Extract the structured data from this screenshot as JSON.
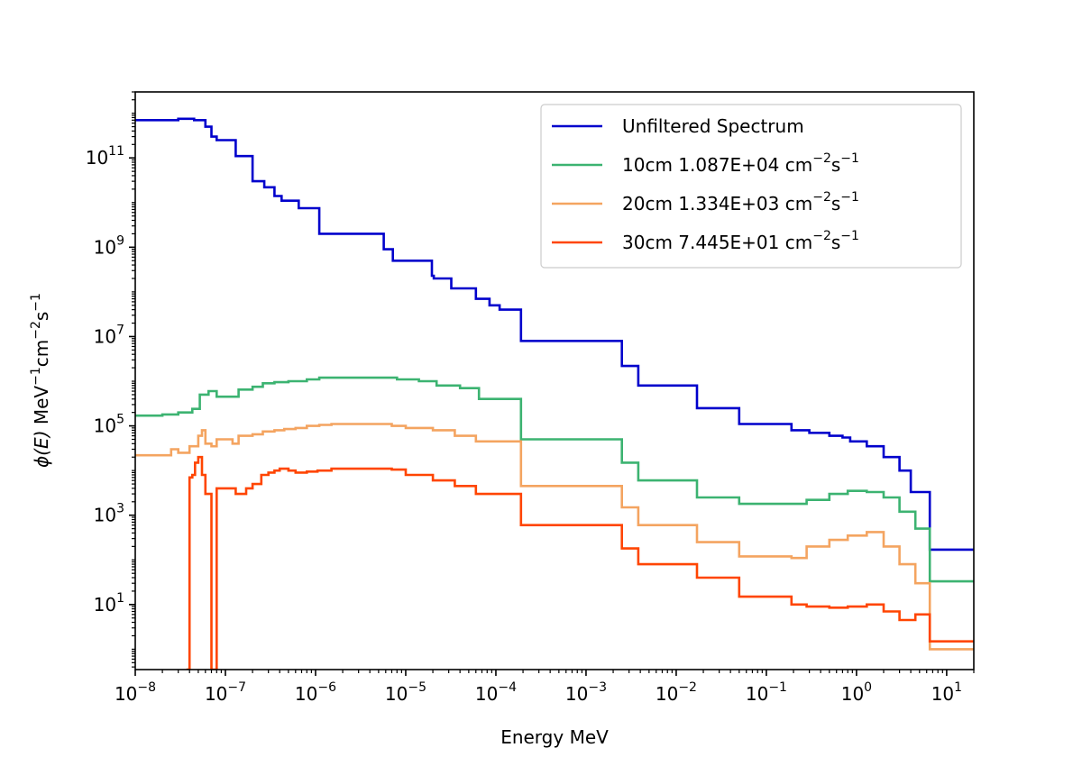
{
  "chart_data": {
    "type": "line",
    "drawstyle": "steps",
    "xscale": "log",
    "yscale": "log",
    "xlabel": "Energy  MeV",
    "ylabel": "ϕ(E)  MeV⁻¹cm⁻²s⁻¹",
    "ylabel_parts": {
      "phi": "ϕ(E)",
      "unit": "MeV",
      "exp1": "−1",
      "cm": "cm",
      "exp2": "−2",
      "s": "s",
      "exp3": "−1"
    },
    "xlim": [
      1e-08,
      20
    ],
    "ylim": [
      0.35,
      3000000000000.0
    ],
    "grid": false,
    "legend_position": "top-right",
    "xticks": [
      {
        "base": "10",
        "exp": "−8",
        "value": 1e-08
      },
      {
        "base": "10",
        "exp": "−7",
        "value": 1e-07
      },
      {
        "base": "10",
        "exp": "−6",
        "value": 1e-06
      },
      {
        "base": "10",
        "exp": "−5",
        "value": 1e-05
      },
      {
        "base": "10",
        "exp": "−4",
        "value": 0.0001
      },
      {
        "base": "10",
        "exp": "−3",
        "value": 0.001
      },
      {
        "base": "10",
        "exp": "−2",
        "value": 0.01
      },
      {
        "base": "10",
        "exp": "−1",
        "value": 0.1
      },
      {
        "base": "10",
        "exp": "0",
        "value": 1
      },
      {
        "base": "10",
        "exp": "1",
        "value": 10
      }
    ],
    "yticks": [
      {
        "base": "10",
        "exp": "1",
        "value": 10
      },
      {
        "base": "10",
        "exp": "3",
        "value": 1000.0
      },
      {
        "base": "10",
        "exp": "5",
        "value": 100000.0
      },
      {
        "base": "10",
        "exp": "7",
        "value": 10000000.0
      },
      {
        "base": "10",
        "exp": "9",
        "value": 1000000000.0
      },
      {
        "base": "10",
        "exp": "11",
        "value": 100000000000.0
      }
    ],
    "series": [
      {
        "name": "Unfiltered Spectrum",
        "legend_parts": {
          "text": "Unfiltered Spectrum",
          "unit1": "",
          "exp1": "",
          "unit2": "",
          "exp2": ""
        },
        "color": "#0000cc",
        "x": [
          1e-08,
          3e-08,
          4.5e-08,
          6e-08,
          7e-08,
          8e-08,
          1.3e-07,
          2e-07,
          2.7e-07,
          3.5e-07,
          4.2e-07,
          6.5e-07,
          1.1e-06,
          5.7e-06,
          7.2e-06,
          1.95e-05,
          2.05e-05,
          3.2e-05,
          6e-05,
          8.5e-05,
          0.00011,
          0.00019,
          0.0025,
          0.0038,
          0.017,
          0.05,
          0.19,
          0.3,
          0.5,
          0.7,
          0.85,
          1.3,
          2,
          3,
          4,
          6.5
        ],
        "y": [
          700000000000.0,
          750000000000.0,
          700000000000.0,
          500000000000.0,
          300000000000.0,
          250000000000.0,
          110000000000.0,
          30000000000.0,
          22000000000.0,
          14000000000.0,
          11000000000.0,
          7500000000.0,
          2000000000.0,
          900000000.0,
          500000000.0,
          230000000.0,
          200000000.0,
          120000000.0,
          70000000.0,
          50000000.0,
          40000000.0,
          8000000.0,
          2200000.0,
          800000.0,
          250000.0,
          110000.0,
          80000.0,
          70000.0,
          60000.0,
          55000.0,
          45000.0,
          35000.0,
          20000.0,
          10000.0,
          3300.0,
          170
        ],
        "x_end": 20
      },
      {
        "name": "10cm 1.087E+04 cm⁻²s⁻¹",
        "legend_parts": {
          "text": "10cm 1.087E+04 ",
          "unit1": "cm",
          "exp1": "−2",
          "unit2": "s",
          "exp2": "−1"
        },
        "color": "#3cb371",
        "x": [
          1e-08,
          2e-08,
          3e-08,
          4.3e-08,
          5.2e-08,
          6.5e-08,
          8e-08,
          1.4e-07,
          2e-07,
          2.6e-07,
          3.5e-07,
          5e-07,
          8e-07,
          1.1e-06,
          8e-06,
          1.4e-05,
          2.2e-05,
          4e-05,
          6.5e-05,
          0.00019,
          0.0025,
          0.0038,
          0.017,
          0.05,
          0.19,
          0.28,
          0.5,
          0.8,
          1.3,
          2,
          3,
          4.5,
          6.5
        ],
        "y": [
          170000.0,
          180000.0,
          200000.0,
          240000.0,
          500000.0,
          600000.0,
          450000.0,
          650000.0,
          750000.0,
          900000.0,
          950000.0,
          1000000.0,
          1100000.0,
          1200000.0,
          1100000.0,
          1000000.0,
          800000.0,
          700000.0,
          400000.0,
          50000.0,
          15000.0,
          6000.0,
          2500.0,
          1800.0,
          1800.0,
          2200.0,
          3000.0,
          3500.0,
          3300.0,
          2500.0,
          1200.0,
          500,
          33
        ],
        "x_end": 20
      },
      {
        "name": "20cm 1.334E+03 cm⁻²s⁻¹",
        "legend_parts": {
          "text": "20cm 1.334E+03 ",
          "unit1": "cm",
          "exp1": "−2",
          "unit2": "s",
          "exp2": "−1"
        },
        "color": "#f4a460",
        "x": [
          1e-08,
          2.5e-08,
          3e-08,
          4e-08,
          5e-08,
          5.5e-08,
          6e-08,
          7e-08,
          8e-08,
          1.2e-07,
          1.4e-07,
          2e-07,
          2.6e-07,
          3.5e-07,
          4.5e-07,
          6e-07,
          8e-07,
          1.1e-06,
          1.5e-06,
          7e-06,
          1e-05,
          2e-05,
          3.5e-05,
          6e-05,
          0.00019,
          0.0025,
          0.0038,
          0.017,
          0.05,
          0.19,
          0.28,
          0.5,
          0.8,
          1.3,
          2,
          3,
          4.5,
          6.5
        ],
        "y": [
          22000.0,
          30000.0,
          25000.0,
          35000.0,
          60000.0,
          80000.0,
          40000.0,
          35000.0,
          50000.0,
          40000.0,
          60000.0,
          65000.0,
          75000.0,
          80000.0,
          85000.0,
          90000.0,
          100000.0,
          105000.0,
          110000.0,
          100000.0,
          90000.0,
          80000.0,
          60000.0,
          45000.0,
          4500.0,
          1500.0,
          600,
          250,
          120,
          110,
          200,
          280,
          350,
          420,
          200,
          80,
          30,
          1
        ],
        "x_end": 20
      },
      {
        "name": "30cm 7.445E+01 cm⁻²s⁻¹",
        "legend_parts": {
          "text": "30cm 7.445E+01 ",
          "unit1": "cm",
          "exp1": "−2",
          "unit2": "s",
          "exp2": "−1"
        },
        "color": "#ff4500",
        "x": [
          3.7e-08,
          4e-08,
          4.3e-08,
          4.6e-08,
          5e-08,
          5.5e-08,
          6e-08,
          7e-08,
          8e-08,
          1e-07,
          1.3e-07,
          1.7e-07,
          2e-07,
          2.5e-07,
          3e-07,
          3.5e-07,
          4e-07,
          5e-07,
          6e-07,
          8e-07,
          1.05e-06,
          1.5e-06,
          7e-06,
          1e-05,
          2e-05,
          3.5e-05,
          6e-05,
          0.00019,
          0.0025,
          0.0038,
          0.017,
          0.05,
          0.19,
          0.28,
          0.5,
          0.8,
          1.3,
          2,
          3,
          4.5,
          6.5
        ],
        "y": [
          0.3,
          7000.0,
          8000.0,
          15000.0,
          20000.0,
          8000.0,
          3000.0,
          0.3,
          4000.0,
          4000.0,
          3000.0,
          4000.0,
          5000.0,
          8000.0,
          9000.0,
          10000.0,
          11000.0,
          10000.0,
          9000.0,
          9500.0,
          10000.0,
          11000.0,
          10500.0,
          8000.0,
          6000.0,
          4500.0,
          3000.0,
          600,
          180,
          80,
          40,
          15,
          10,
          9,
          8.5,
          9,
          10,
          7,
          4.5,
          6,
          1.5
        ],
        "x_end": 20
      }
    ]
  }
}
